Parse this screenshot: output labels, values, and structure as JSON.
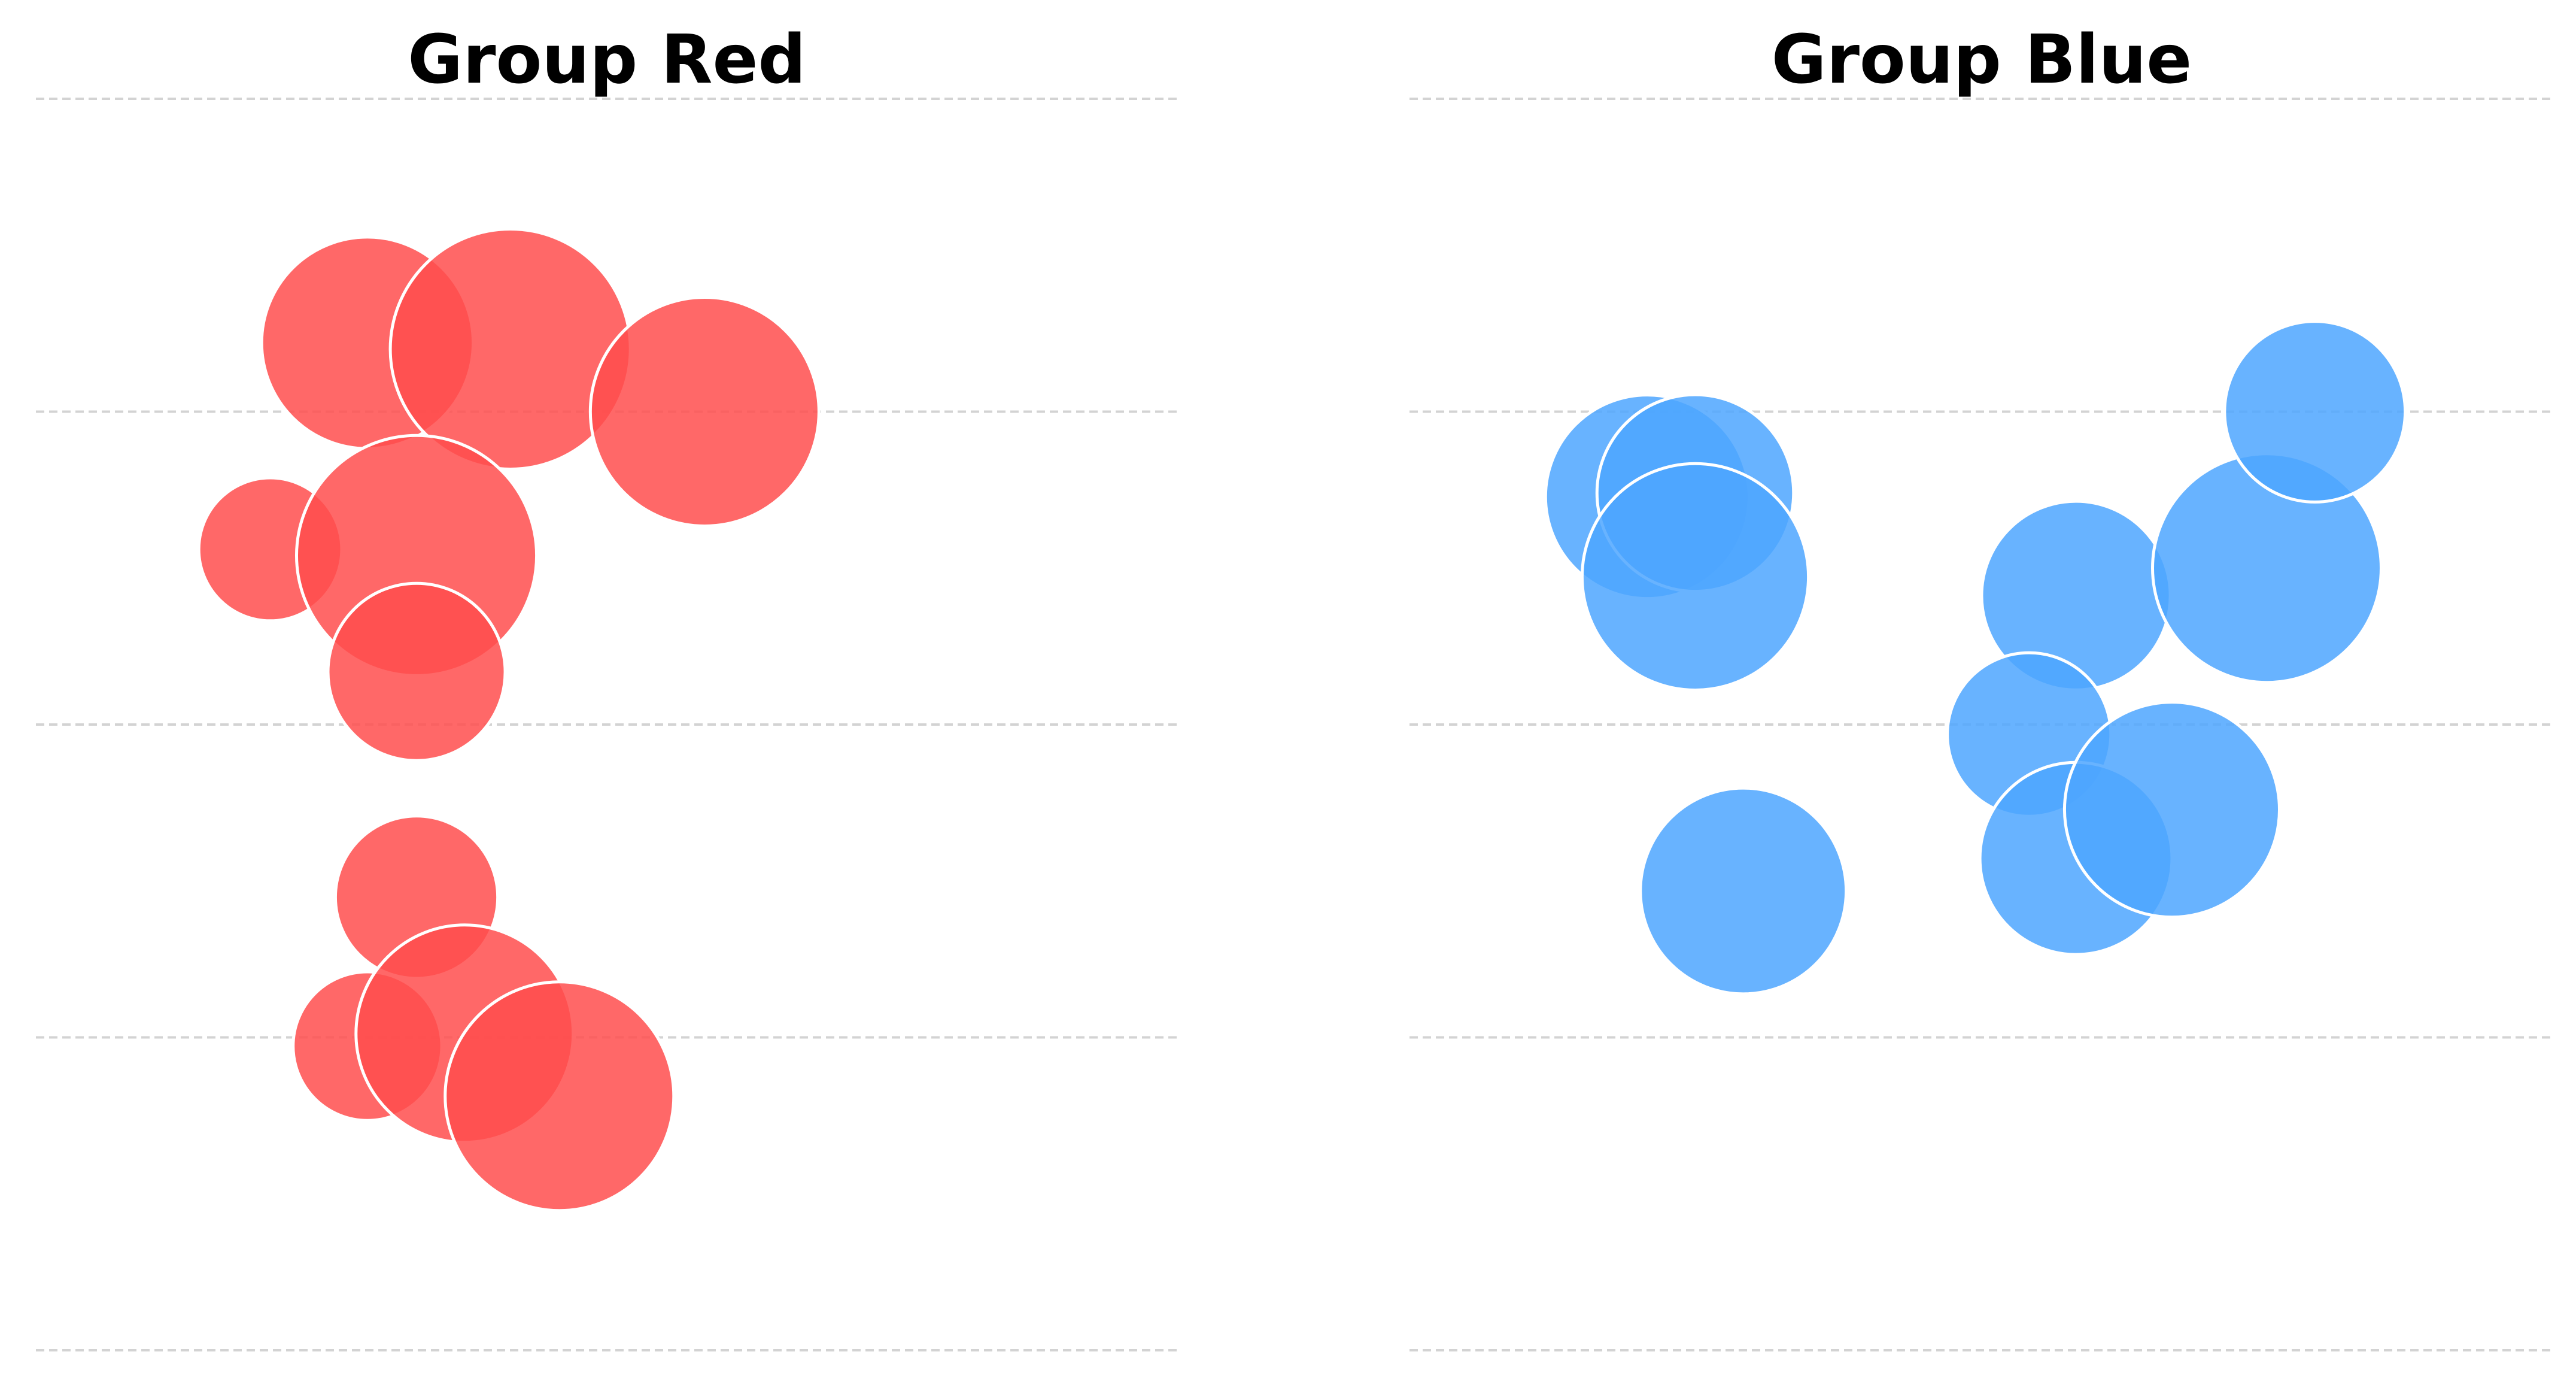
{
  "chart_data": [
    {
      "type": "scatter",
      "title": "Group Red",
      "color": "#ff4d4d",
      "opacity": 0.85,
      "xlim": [
        0,
        1
      ],
      "ylim": [
        0,
        1
      ],
      "grid": "horizontal-dashed",
      "yticks": [
        0,
        0.25,
        0.5,
        0.75,
        1
      ],
      "points": [
        {
          "x": 0.29,
          "y": 0.805,
          "size": 0.185
        },
        {
          "x": 0.415,
          "y": 0.8,
          "size": 0.21
        },
        {
          "x": 0.585,
          "y": 0.75,
          "size": 0.2
        },
        {
          "x": 0.205,
          "y": 0.64,
          "size": 0.125
        },
        {
          "x": 0.333,
          "y": 0.635,
          "size": 0.21
        },
        {
          "x": 0.333,
          "y": 0.542,
          "size": 0.155
        },
        {
          "x": 0.333,
          "y": 0.362,
          "size": 0.142
        },
        {
          "x": 0.29,
          "y": 0.243,
          "size": 0.13
        },
        {
          "x": 0.375,
          "y": 0.253,
          "size": 0.19
        },
        {
          "x": 0.458,
          "y": 0.203,
          "size": 0.2
        }
      ]
    },
    {
      "type": "scatter",
      "title": "Group Blue",
      "color": "#4da6ff",
      "opacity": 0.85,
      "xlim": [
        0,
        1
      ],
      "ylim": [
        0,
        1
      ],
      "grid": "horizontal-dashed",
      "yticks": [
        0,
        0.25,
        0.5,
        0.75,
        1
      ],
      "points": [
        {
          "x": 0.208,
          "y": 0.682,
          "size": 0.178
        },
        {
          "x": 0.25,
          "y": 0.685,
          "size": 0.172
        },
        {
          "x": 0.25,
          "y": 0.618,
          "size": 0.198
        },
        {
          "x": 0.292,
          "y": 0.367,
          "size": 0.18
        },
        {
          "x": 0.583,
          "y": 0.603,
          "size": 0.165
        },
        {
          "x": 0.75,
          "y": 0.625,
          "size": 0.2
        },
        {
          "x": 0.792,
          "y": 0.75,
          "size": 0.158
        },
        {
          "x": 0.542,
          "y": 0.492,
          "size": 0.143
        },
        {
          "x": 0.583,
          "y": 0.393,
          "size": 0.168
        },
        {
          "x": 0.667,
          "y": 0.432,
          "size": 0.188
        }
      ]
    }
  ]
}
